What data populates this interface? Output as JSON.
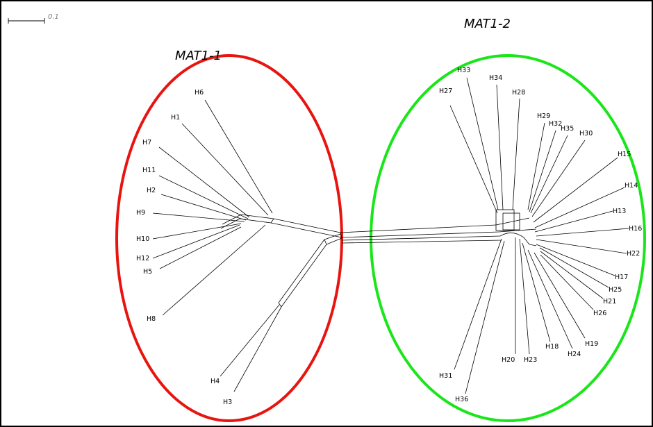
{
  "scale_bar": {
    "label": "0.1"
  },
  "groups": [
    {
      "id": "mat1-1",
      "label": "MAT1-1",
      "color": "#e8140f"
    },
    {
      "id": "mat1-2",
      "label": "MAT1-2",
      "color": "#19e619"
    }
  ],
  "haplotypes": {
    "mat1_1": [
      "H6",
      "H1",
      "H7",
      "H11",
      "H2",
      "H9",
      "H10",
      "H12",
      "H5",
      "H8",
      "H4",
      "H3"
    ],
    "mat1_2": [
      "H33",
      "H34",
      "H27",
      "H28",
      "H29",
      "H32",
      "H35",
      "H30",
      "H15",
      "H14",
      "H13",
      "H16",
      "H22",
      "H17",
      "H25",
      "H21",
      "H26",
      "H19",
      "H24",
      "H18",
      "H23",
      "H20",
      "H31",
      "H36"
    ]
  }
}
